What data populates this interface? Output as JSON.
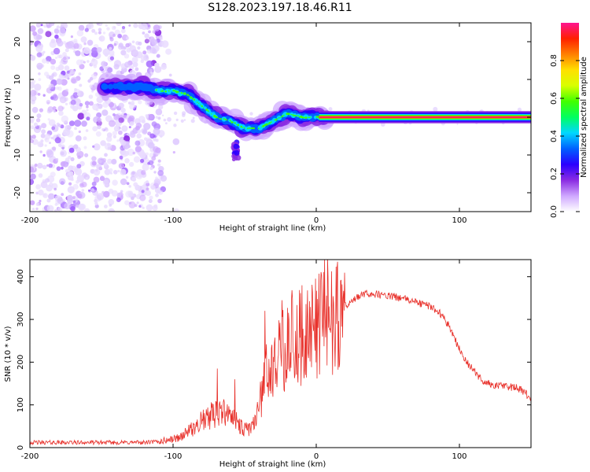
{
  "title": "S128.2023.197.18.46.R11",
  "chart_data": [
    {
      "type": "heatmap",
      "xlabel": "Height of straight line (km)",
      "ylabel": "Frequency (Hz)",
      "xlim": [
        -200,
        150
      ],
      "ylim": [
        -25,
        25
      ],
      "x_ticks": [
        -200,
        -100,
        0,
        100
      ],
      "y_ticks": [
        -20,
        -10,
        0,
        10,
        20
      ],
      "colorbar": {
        "label": "Normalized spectral amplitude",
        "range": [
          0,
          1
        ],
        "ticks": [
          "0.0",
          "0.2",
          "0.4",
          "0.6",
          "0.8"
        ],
        "colors": [
          "#ffffff",
          "#cfa8ff",
          "#8a2be2",
          "#2a00ff",
          "#0060ff",
          "#00d8ff",
          "#00ff60",
          "#40ff00",
          "#d8ff00",
          "#ffe000",
          "#ff8000",
          "#ff2000",
          "#ff1490"
        ]
      },
      "ridge_frequency": {
        "x": [
          -140,
          -120,
          -110,
          -100,
          -90,
          -80,
          -70,
          -60,
          -50,
          -45,
          -40,
          -30,
          -20,
          -10,
          0,
          5,
          10,
          50,
          100,
          150
        ],
        "y": [
          8,
          8,
          7,
          7,
          6,
          3,
          0,
          -1,
          -3,
          -3,
          -3,
          -1,
          1,
          0,
          0,
          0,
          0,
          0,
          0,
          0
        ]
      },
      "notes": "diffuse low-amplitude noise for heights below about -110 km; narrow tone at 0 Hz above 0 km"
    },
    {
      "type": "line",
      "xlabel": "Height of straight line (km)",
      "ylabel": "SNR (10 * v/v)",
      "xlim": [
        -200,
        150
      ],
      "ylim": [
        0,
        440
      ],
      "x_ticks": [
        -200,
        -100,
        0,
        100
      ],
      "y_ticks": [
        0,
        100,
        200,
        300,
        400
      ],
      "color": "#e8302a",
      "series": [
        {
          "x": [
            -200,
            -180,
            -160,
            -140,
            -120,
            -110,
            -100,
            -95,
            -90,
            -85,
            -80,
            -75,
            -70,
            -65,
            -60,
            -55,
            -50,
            -45,
            -40,
            -35,
            -30,
            -25,
            -20,
            -15,
            -10,
            -5,
            0,
            5,
            10,
            15,
            20,
            25,
            30,
            35,
            40,
            50,
            60,
            70,
            80,
            85,
            90,
            95,
            100,
            105,
            110,
            115,
            120,
            125,
            130,
            135,
            140,
            145,
            150
          ],
          "y": [
            12,
            12,
            12,
            12,
            12,
            14,
            20,
            25,
            35,
            45,
            60,
            70,
            80,
            80,
            70,
            55,
            40,
            45,
            100,
            170,
            170,
            220,
            240,
            250,
            260,
            270,
            280,
            300,
            300,
            320,
            330,
            340,
            355,
            360,
            360,
            355,
            350,
            340,
            330,
            320,
            300,
            270,
            230,
            200,
            180,
            160,
            150,
            145,
            145,
            142,
            140,
            130,
            115
          ]
        }
      ],
      "spikes": [
        {
          "x": -69,
          "y": 185
        },
        {
          "x": -57,
          "y": 160
        },
        {
          "x": -36,
          "y": 320
        },
        {
          "x": -24,
          "y": 345
        },
        {
          "x": -10,
          "y": 380
        },
        {
          "x": 3,
          "y": 385
        },
        {
          "x": 15,
          "y": 435
        }
      ]
    }
  ]
}
